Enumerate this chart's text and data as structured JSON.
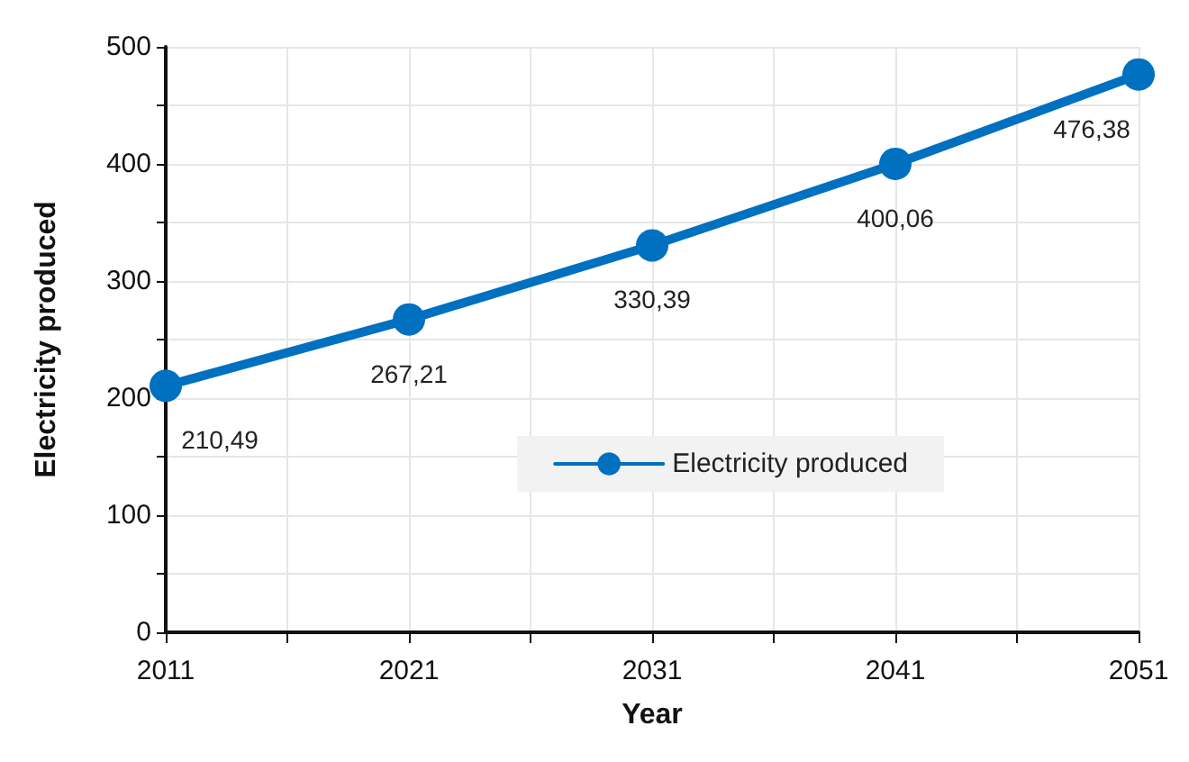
{
  "chart_data": {
    "type": "line",
    "xlabel": "Year",
    "ylabel": "Electricity produced",
    "x": [
      2011,
      2021,
      2031,
      2041,
      2051
    ],
    "series": [
      {
        "name": "Electricity produced",
        "color": "#0070c0",
        "values": [
          210.49,
          267.21,
          330.39,
          400.06,
          476.38
        ],
        "value_labels": [
          "210,49",
          "267,21",
          "330,39",
          "400,06",
          "476,38"
        ]
      }
    ],
    "xlim": [
      2011,
      2051
    ],
    "xticks": [
      2011,
      {
        "value": 2016,
        "label": null
      },
      2021,
      {
        "value": 2026,
        "label": null
      },
      2031,
      {
        "value": 2036,
        "label": null
      },
      2041,
      {
        "value": 2046,
        "label": null
      },
      2051
    ],
    "ylim": [
      0,
      500
    ],
    "yticks": [
      0,
      {
        "value": 50,
        "label": null
      },
      100,
      {
        "value": 150,
        "label": null
      },
      200,
      {
        "value": 250,
        "label": null
      },
      300,
      {
        "value": 350,
        "label": null
      },
      400,
      {
        "value": 450,
        "label": null
      },
      500
    ],
    "grid": true,
    "legend": "right",
    "marker": "circle",
    "line_style": "solid"
  }
}
